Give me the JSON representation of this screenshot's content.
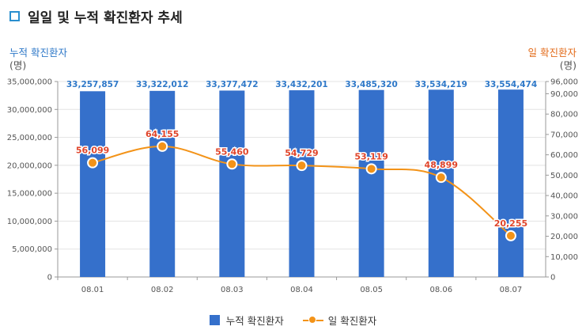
{
  "header": {
    "title": "일일 및 누적 확진환자 추세"
  },
  "axes": {
    "left_label": "누적 확진환자",
    "left_unit": "(명)",
    "right_label": "일 확진환자",
    "right_unit": "(명)"
  },
  "legend": {
    "bar_label": "누적 확진환자",
    "line_label": "일 확진환자"
  },
  "colors": {
    "bar": "#3570cb",
    "bar_label": "#2e78c8",
    "line": "#f39318",
    "line_label": "#e0452b",
    "axis_text": "#555555",
    "grid": "#e3e3e3"
  },
  "chart_data": {
    "type": "bar",
    "title": "일일 및 누적 확진환자 추세",
    "categories": [
      "08.01",
      "08.02",
      "08.03",
      "08.04",
      "08.05",
      "08.06",
      "08.07"
    ],
    "series": [
      {
        "name": "누적 확진환자",
        "type": "bar",
        "axis": "left",
        "values": [
          33257857,
          33322012,
          33377472,
          33432201,
          33485320,
          33534219,
          33554474
        ],
        "labels": [
          "33,257,857",
          "33,322,012",
          "33,377,472",
          "33,432,201",
          "33,485,320",
          "33,534,219",
          "33,554,474"
        ]
      },
      {
        "name": "일 확진환자",
        "type": "line",
        "axis": "right",
        "values": [
          56099,
          64155,
          55460,
          54729,
          53119,
          48899,
          20255
        ],
        "labels": [
          "56,099",
          "64,155",
          "55,460",
          "54,729",
          "53,119",
          "48,899",
          "20,255"
        ]
      }
    ],
    "y_left": {
      "label": "누적 확진환자",
      "unit": "(명)",
      "ylim": [
        0,
        35000000
      ],
      "ticks": [
        0,
        5000000,
        10000000,
        15000000,
        20000000,
        25000000,
        30000000,
        35000000
      ],
      "tick_labels": [
        "0",
        "5,000,000",
        "10,000,000",
        "15,000,000",
        "20,000,000",
        "25,000,000",
        "30,000,000",
        "35,000,000"
      ]
    },
    "y_right": {
      "label": "일 확진환자",
      "unit": "(명)",
      "ylim": [
        0,
        96000
      ],
      "ticks": [
        0,
        10000,
        20000,
        30000,
        40000,
        50000,
        60000,
        70000,
        80000,
        90000,
        96000
      ],
      "tick_labels": [
        "0",
        "10,000",
        "20,000",
        "30,000",
        "40,000",
        "50,000",
        "60,000",
        "70,000",
        "80,000",
        "90,000",
        "96,000"
      ]
    },
    "grid": true,
    "legend_position": "bottom-center"
  }
}
